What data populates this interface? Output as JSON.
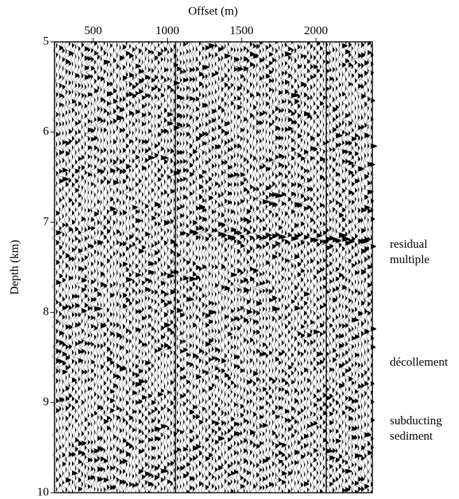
{
  "chart_data": {
    "type": "wiggle",
    "xlabel": "Offset (m)",
    "ylabel": "Depth (km)",
    "xlim": [
      240,
      2380
    ],
    "xticks": [
      500,
      1000,
      1500,
      2000
    ],
    "ylim": [
      10,
      5
    ],
    "yticks": [
      5,
      6,
      7,
      8,
      9,
      10
    ],
    "annotations": [
      "residual\nmultiple",
      "décollement",
      "subducting\nsediment"
    ]
  }
}
